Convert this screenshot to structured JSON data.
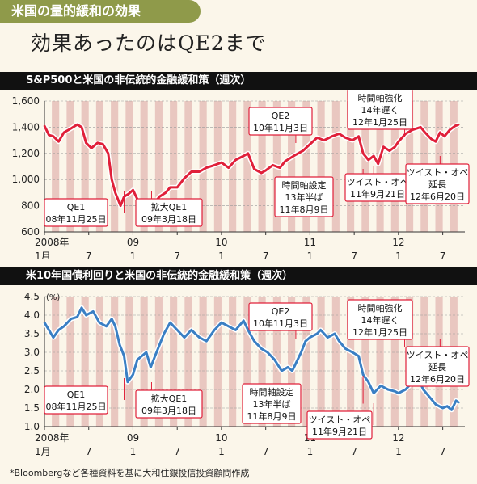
{
  "tag_label": "米国の量的緩和の効果",
  "headline": "効果あったのはQE2まで",
  "source_note": "*Bloombergなど各種資料を基に大和住銀投信投資顧問作成",
  "colors": {
    "sp_line": "#e0203a",
    "bond_line": "#3a7fc4",
    "stripe": "#e9c7c0",
    "callout_border": "#e0203a"
  },
  "chart_data": [
    {
      "type": "line",
      "title": "S&P500と米国の非伝統的金融緩和策（週次）",
      "y_ticks": [
        "1,600",
        "1,400",
        "1,200",
        "1,000",
        "800",
        "600"
      ],
      "ylim": [
        600,
        1600
      ],
      "x_ticks": [
        {
          "label": "2008年",
          "t": 2008.0,
          "row": 1
        },
        {
          "label": "1月",
          "t": 2008.0,
          "row": 2
        },
        {
          "label": "7",
          "t": 2008.5,
          "row": 2
        },
        {
          "label": "09",
          "t": 2009.0,
          "row": 1
        },
        {
          "label": "1",
          "t": 2009.0,
          "row": 2
        },
        {
          "label": "7",
          "t": 2009.5,
          "row": 2
        },
        {
          "label": "10",
          "t": 2010.0,
          "row": 1
        },
        {
          "label": "1",
          "t": 2010.0,
          "row": 2
        },
        {
          "label": "7",
          "t": 2010.5,
          "row": 2
        },
        {
          "label": "11",
          "t": 2011.0,
          "row": 1
        },
        {
          "label": "1",
          "t": 2011.0,
          "row": 2
        },
        {
          "label": "7",
          "t": 2011.5,
          "row": 2
        },
        {
          "label": "12",
          "t": 2012.0,
          "row": 1
        },
        {
          "label": "1",
          "t": 2012.0,
          "row": 2
        },
        {
          "label": "7",
          "t": 2012.5,
          "row": 2
        }
      ],
      "points": [
        [
          2008.0,
          1410
        ],
        [
          2008.05,
          1340
        ],
        [
          2008.1,
          1330
        ],
        [
          2008.16,
          1290
        ],
        [
          2008.22,
          1360
        ],
        [
          2008.3,
          1390
        ],
        [
          2008.37,
          1420
        ],
        [
          2008.42,
          1400
        ],
        [
          2008.47,
          1280
        ],
        [
          2008.53,
          1240
        ],
        [
          2008.6,
          1280
        ],
        [
          2008.66,
          1270
        ],
        [
          2008.72,
          1200
        ],
        [
          2008.76,
          1000
        ],
        [
          2008.8,
          900
        ],
        [
          2008.86,
          800
        ],
        [
          2008.9,
          870
        ],
        [
          2008.95,
          890
        ],
        [
          2009.0,
          920
        ],
        [
          2009.05,
          850
        ],
        [
          2009.1,
          770
        ],
        [
          2009.15,
          700
        ],
        [
          2009.18,
          760
        ],
        [
          2009.23,
          810
        ],
        [
          2009.3,
          870
        ],
        [
          2009.37,
          900
        ],
        [
          2009.42,
          940
        ],
        [
          2009.5,
          940
        ],
        [
          2009.58,
          1010
        ],
        [
          2009.66,
          1060
        ],
        [
          2009.75,
          1060
        ],
        [
          2009.83,
          1090
        ],
        [
          2009.92,
          1110
        ],
        [
          2010.0,
          1130
        ],
        [
          2010.08,
          1090
        ],
        [
          2010.16,
          1150
        ],
        [
          2010.25,
          1180
        ],
        [
          2010.3,
          1200
        ],
        [
          2010.37,
          1080
        ],
        [
          2010.45,
          1050
        ],
        [
          2010.5,
          1070
        ],
        [
          2010.58,
          1110
        ],
        [
          2010.66,
          1090
        ],
        [
          2010.72,
          1140
        ],
        [
          2010.84,
          1190
        ],
        [
          2010.92,
          1220
        ],
        [
          2011.0,
          1270
        ],
        [
          2011.08,
          1320
        ],
        [
          2011.16,
          1300
        ],
        [
          2011.25,
          1330
        ],
        [
          2011.33,
          1350
        ],
        [
          2011.4,
          1320
        ],
        [
          2011.48,
          1300
        ],
        [
          2011.55,
          1330
        ],
        [
          2011.6,
          1200
        ],
        [
          2011.66,
          1150
        ],
        [
          2011.72,
          1180
        ],
        [
          2011.77,
          1120
        ],
        [
          2011.83,
          1250
        ],
        [
          2011.9,
          1220
        ],
        [
          2011.96,
          1250
        ],
        [
          2012.0,
          1290
        ],
        [
          2012.08,
          1350
        ],
        [
          2012.16,
          1380
        ],
        [
          2012.25,
          1400
        ],
        [
          2012.3,
          1360
        ],
        [
          2012.37,
          1310
        ],
        [
          2012.42,
          1290
        ],
        [
          2012.47,
          1360
        ],
        [
          2012.52,
          1330
        ],
        [
          2012.58,
          1380
        ],
        [
          2012.64,
          1410
        ],
        [
          2012.68,
          1420
        ]
      ],
      "annotations": [
        {
          "lines": [
            "QE1",
            "08年11月25日"
          ],
          "t": 2008.9
        },
        {
          "lines": [
            "拡大QE1",
            "09年3月18日"
          ],
          "t": 2009.21
        },
        {
          "lines": [
            "QE2",
            "10年11月3日"
          ],
          "t": 2010.84
        },
        {
          "lines": [
            "時間軸設定",
            "13年半ば",
            "11年8月9日"
          ],
          "t": 2011.6
        },
        {
          "lines": [
            "ツイスト・オペ",
            "11年9月21日"
          ],
          "t": 2011.72
        },
        {
          "lines": [
            "時間軸強化",
            "14年遅く",
            "12年1月25日"
          ],
          "t": 2012.07
        },
        {
          "lines": [
            "ツイスト・オペ",
            "延長",
            "12年6月20日"
          ],
          "t": 2012.47
        }
      ]
    },
    {
      "type": "line",
      "title": "米10年国債利回りと米国の非伝統的金融緩和策（週次）",
      "unit_label": "(%)",
      "y_ticks": [
        "4.5",
        "4.0",
        "3.5",
        "3.0",
        "2.5",
        "2.0",
        "1.5",
        "1.0"
      ],
      "ylim": [
        1.0,
        4.5
      ],
      "x_ticks": [
        {
          "label": "2008年",
          "t": 2008.0,
          "row": 1
        },
        {
          "label": "1月",
          "t": 2008.0,
          "row": 2
        },
        {
          "label": "7",
          "t": 2008.5,
          "row": 2
        },
        {
          "label": "09",
          "t": 2009.0,
          "row": 1
        },
        {
          "label": "1",
          "t": 2009.0,
          "row": 2
        },
        {
          "label": "7",
          "t": 2009.5,
          "row": 2
        },
        {
          "label": "10",
          "t": 2010.0,
          "row": 1
        },
        {
          "label": "1",
          "t": 2010.0,
          "row": 2
        },
        {
          "label": "7",
          "t": 2010.5,
          "row": 2
        },
        {
          "label": "11",
          "t": 2011.0,
          "row": 1
        },
        {
          "label": "1",
          "t": 2011.0,
          "row": 2
        },
        {
          "label": "7",
          "t": 2011.5,
          "row": 2
        },
        {
          "label": "12",
          "t": 2012.0,
          "row": 1
        },
        {
          "label": "1",
          "t": 2012.0,
          "row": 2
        },
        {
          "label": "7",
          "t": 2012.5,
          "row": 2
        }
      ],
      "points": [
        [
          2008.0,
          3.8
        ],
        [
          2008.05,
          3.6
        ],
        [
          2008.1,
          3.4
        ],
        [
          2008.16,
          3.6
        ],
        [
          2008.22,
          3.7
        ],
        [
          2008.3,
          3.9
        ],
        [
          2008.37,
          3.95
        ],
        [
          2008.42,
          4.2
        ],
        [
          2008.47,
          4.0
        ],
        [
          2008.55,
          4.1
        ],
        [
          2008.62,
          3.8
        ],
        [
          2008.7,
          3.7
        ],
        [
          2008.76,
          3.9
        ],
        [
          2008.8,
          3.7
        ],
        [
          2008.85,
          3.2
        ],
        [
          2008.9,
          2.9
        ],
        [
          2008.94,
          2.2
        ],
        [
          2009.0,
          2.4
        ],
        [
          2009.05,
          2.8
        ],
        [
          2009.1,
          2.9
        ],
        [
          2009.15,
          3.0
        ],
        [
          2009.2,
          2.6
        ],
        [
          2009.25,
          2.9
        ],
        [
          2009.3,
          3.2
        ],
        [
          2009.35,
          3.5
        ],
        [
          2009.42,
          3.8
        ],
        [
          2009.5,
          3.6
        ],
        [
          2009.58,
          3.4
        ],
        [
          2009.66,
          3.6
        ],
        [
          2009.75,
          3.4
        ],
        [
          2009.83,
          3.3
        ],
        [
          2009.92,
          3.6
        ],
        [
          2010.0,
          3.8
        ],
        [
          2010.08,
          3.7
        ],
        [
          2010.16,
          3.6
        ],
        [
          2010.25,
          3.85
        ],
        [
          2010.3,
          3.6
        ],
        [
          2010.37,
          3.3
        ],
        [
          2010.45,
          3.1
        ],
        [
          2010.52,
          3.0
        ],
        [
          2010.6,
          2.8
        ],
        [
          2010.68,
          2.5
        ],
        [
          2010.75,
          2.6
        ],
        [
          2010.8,
          2.5
        ],
        [
          2010.84,
          2.7
        ],
        [
          2010.9,
          3.0
        ],
        [
          2010.95,
          3.3
        ],
        [
          2011.0,
          3.4
        ],
        [
          2011.08,
          3.5
        ],
        [
          2011.12,
          3.6
        ],
        [
          2011.2,
          3.4
        ],
        [
          2011.28,
          3.5
        ],
        [
          2011.33,
          3.3
        ],
        [
          2011.4,
          3.1
        ],
        [
          2011.48,
          3.0
        ],
        [
          2011.55,
          2.9
        ],
        [
          2011.6,
          2.4
        ],
        [
          2011.66,
          2.2
        ],
        [
          2011.72,
          1.9
        ],
        [
          2011.8,
          2.1
        ],
        [
          2011.88,
          2.0
        ],
        [
          2011.96,
          1.95
        ],
        [
          2012.0,
          1.9
        ],
        [
          2012.08,
          2.0
        ],
        [
          2012.16,
          2.2
        ],
        [
          2012.22,
          2.3
        ],
        [
          2012.28,
          2.0
        ],
        [
          2012.35,
          1.8
        ],
        [
          2012.42,
          1.6
        ],
        [
          2012.5,
          1.5
        ],
        [
          2012.55,
          1.55
        ],
        [
          2012.6,
          1.45
        ],
        [
          2012.65,
          1.7
        ],
        [
          2012.68,
          1.65
        ]
      ],
      "annotations": [
        {
          "lines": [
            "QE1",
            "08年11月25日"
          ],
          "t": 2008.9
        },
        {
          "lines": [
            "拡大QE1",
            "09年3月18日"
          ],
          "t": 2009.21
        },
        {
          "lines": [
            "QE2",
            "10年11月3日"
          ],
          "t": 2010.84
        },
        {
          "lines": [
            "時間軸設定",
            "13年半ば",
            "11年8月9日"
          ],
          "t": 2011.6
        },
        {
          "lines": [
            "ツイスト・オペ",
            "11年9月21日"
          ],
          "t": 2011.72
        },
        {
          "lines": [
            "時間軸強化",
            "14年遅く",
            "12年1月25日"
          ],
          "t": 2012.07
        },
        {
          "lines": [
            "ツイスト・オペ",
            "延長",
            "12年6月20日"
          ],
          "t": 2012.47
        }
      ]
    }
  ]
}
